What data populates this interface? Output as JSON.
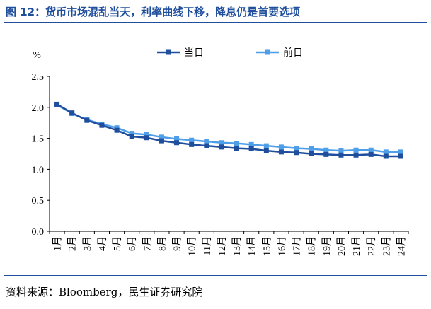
{
  "header": {
    "title": "图 12：货币市场混乱当天，利率曲线下移，降息仍是首要选项"
  },
  "footer": {
    "source": "资料来源：Bloomberg，民生证券研究院"
  },
  "chart_data": {
    "type": "line",
    "title": "",
    "ylabel": "%",
    "xlabel": "",
    "categories": [
      "1月",
      "2月",
      "3月",
      "4月",
      "5月",
      "6月",
      "7月",
      "8月",
      "9月",
      "10月",
      "11月",
      "12月",
      "13月",
      "14月",
      "15月",
      "16月",
      "17月",
      "18月",
      "19月",
      "20月",
      "21月",
      "22月",
      "23月",
      "24月"
    ],
    "ylim": [
      0.0,
      2.5
    ],
    "yticks": [
      "0.0",
      "0.5",
      "1.0",
      "1.5",
      "2.0",
      "2.5"
    ],
    "legend_position": "top",
    "grid": false,
    "series": [
      {
        "name": "当日",
        "color": "#1f4e9c",
        "marker": "square",
        "values": [
          2.05,
          1.91,
          1.79,
          1.71,
          1.63,
          1.53,
          1.51,
          1.46,
          1.43,
          1.4,
          1.38,
          1.36,
          1.34,
          1.33,
          1.3,
          1.28,
          1.27,
          1.25,
          1.24,
          1.23,
          1.23,
          1.24,
          1.21,
          1.21
        ]
      },
      {
        "name": "前日",
        "color": "#4f9ee8",
        "marker": "square",
        "values": [
          2.04,
          1.9,
          1.8,
          1.73,
          1.67,
          1.58,
          1.56,
          1.52,
          1.49,
          1.47,
          1.45,
          1.43,
          1.42,
          1.4,
          1.38,
          1.36,
          1.34,
          1.33,
          1.31,
          1.3,
          1.31,
          1.31,
          1.28,
          1.28
        ]
      }
    ]
  }
}
